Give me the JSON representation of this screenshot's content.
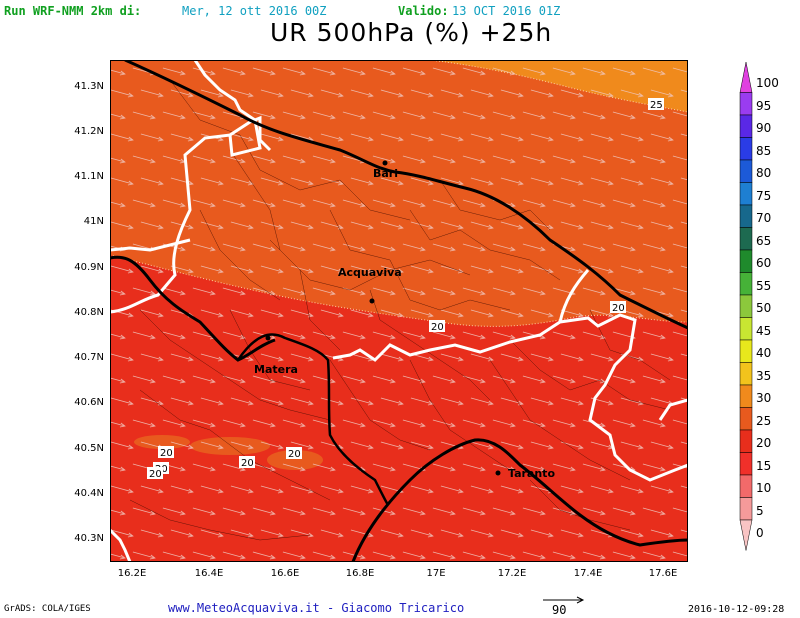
{
  "header": {
    "run_label": "Run WRF-NMM 2km di:",
    "run_date": "Mer, 12 ott 2016 00Z",
    "valid_label": "Valido:",
    "valid_date": "13 OCT 2016 01Z"
  },
  "title": "UR 500hPa (%) +25h",
  "axes": {
    "y_ticks": [
      "41.3N",
      "41.2N",
      "41.1N",
      "41N",
      "40.9N",
      "40.8N",
      "40.7N",
      "40.6N",
      "40.5N",
      "40.4N",
      "40.3N"
    ],
    "x_ticks": [
      "16.2E",
      "16.4E",
      "16.6E",
      "16.8E",
      "17E",
      "17.2E",
      "17.4E",
      "17.6E"
    ]
  },
  "cities": [
    "Bari",
    "Acquaviva",
    "Matera",
    "Taranto"
  ],
  "contour_labels": [
    "25",
    "20",
    "20",
    "20",
    "20",
    "20",
    "20",
    "20"
  ],
  "colorbar": {
    "labels": [
      "100",
      "95",
      "90",
      "85",
      "80",
      "75",
      "70",
      "65",
      "60",
      "55",
      "50",
      "45",
      "40",
      "35",
      "30",
      "25",
      "20",
      "15",
      "10",
      "5",
      "0"
    ],
    "colors": [
      "#e040e0",
      "#9a3cf0",
      "#5a28e6",
      "#2a3ce6",
      "#1c5ad8",
      "#1e7fd2",
      "#17688c",
      "#1d6a50",
      "#1f8a2c",
      "#46b238",
      "#8cc83c",
      "#c8e632",
      "#e8e81c",
      "#f2c31c",
      "#f08a1c",
      "#e85a1e",
      "#e82e1c",
      "#f0302a",
      "#f26a6a",
      "#f59a9a",
      "#f9c4c4"
    ]
  },
  "footer": {
    "grads": "GrADS: COLA/IGES",
    "site": "www.MeteoAcquaviva.it - Giacomo Tricarico",
    "vector_scale": "90",
    "timestamp": "2016-10-12-09:28"
  },
  "legend_colors": {
    "high_ur": "#f08a1c",
    "mid_ur": "#e85a1e",
    "low_ur": "#e82e1c",
    "coast": "#000000",
    "regions": "#ffffff"
  }
}
